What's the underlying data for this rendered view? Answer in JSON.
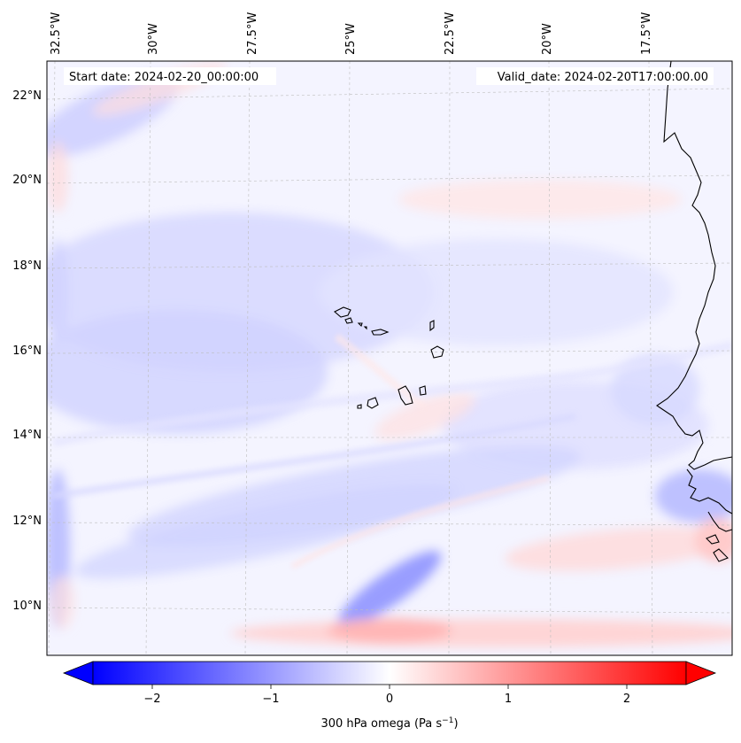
{
  "map": {
    "start_label": "Start date: 2024-02-20_00:00:00",
    "valid_label": "Valid_date: 2024-02-20T17:00:00.00",
    "lon_ticks": [
      "32.5°W",
      "30°W",
      "27.5°W",
      "25°W",
      "22.5°W",
      "20°W",
      "17.5°W"
    ],
    "lat_ticks": [
      "22°N",
      "20°N",
      "18°N",
      "16°N",
      "14°N",
      "12°N",
      "10°N"
    ],
    "colorbar": {
      "ticks": [
        "−2",
        "−1",
        "0",
        "1",
        "2"
      ],
      "tick_values": [
        -2,
        -1,
        0,
        1,
        2
      ],
      "range": [
        -2.5,
        2.5
      ],
      "label": "300 hPa omega (Pa s",
      "label_sup": "−1",
      "label_close": ")",
      "colors": {
        "negative": "#0000ff",
        "zero": "#ffffff",
        "positive": "#ff0000"
      }
    }
  }
}
